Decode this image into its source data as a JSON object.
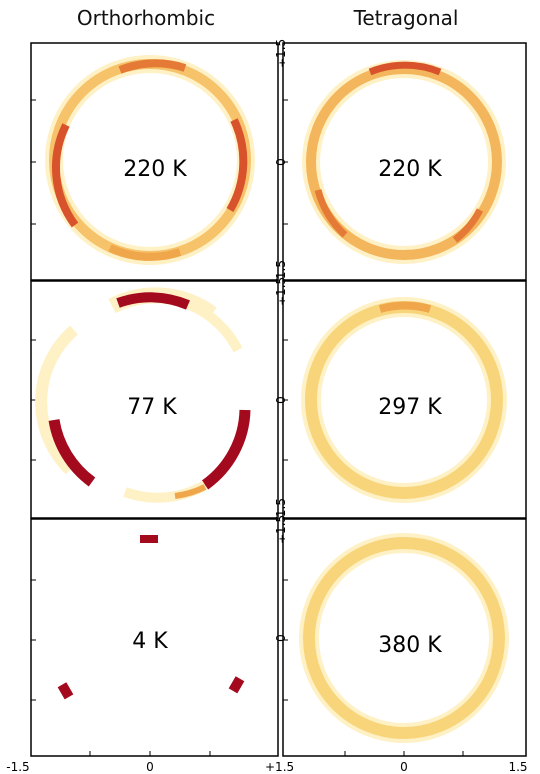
{
  "columns": {
    "left": "Orthorhombic",
    "right": "Tetragonal"
  },
  "panels": [
    {
      "label": "220 K",
      "phase": "Orthorhombic",
      "shape": "ring",
      "intensity": "strong-sides"
    },
    {
      "label": "220 K",
      "phase": "Tetragonal",
      "shape": "ring",
      "intensity": "medium"
    },
    {
      "label": "77 K",
      "phase": "Orthorhombic",
      "shape": "three-arcs",
      "intensity": "high"
    },
    {
      "label": "297 K",
      "phase": "Tetragonal",
      "shape": "ring",
      "intensity": "low"
    },
    {
      "label": "4 K",
      "phase": "Orthorhombic",
      "shape": "three-spots",
      "intensity": "very-high"
    },
    {
      "label": "380 K",
      "phase": "Tetragonal",
      "shape": "ring",
      "intensity": "low"
    }
  ],
  "axes": {
    "x_ticks_left": [
      "-1.5",
      "0",
      "+1.5"
    ],
    "x_ticks_right": [
      "∓1.5",
      "0",
      "1.5"
    ],
    "y_ticks": [
      "∓1.5",
      "0",
      "1.5"
    ]
  },
  "colors": {
    "pale": "#fff1c6",
    "light": "#f8d57a",
    "mid": "#f0a64a",
    "strong": "#d8532b",
    "dark": "#a40a1e",
    "frame": "#000000"
  }
}
